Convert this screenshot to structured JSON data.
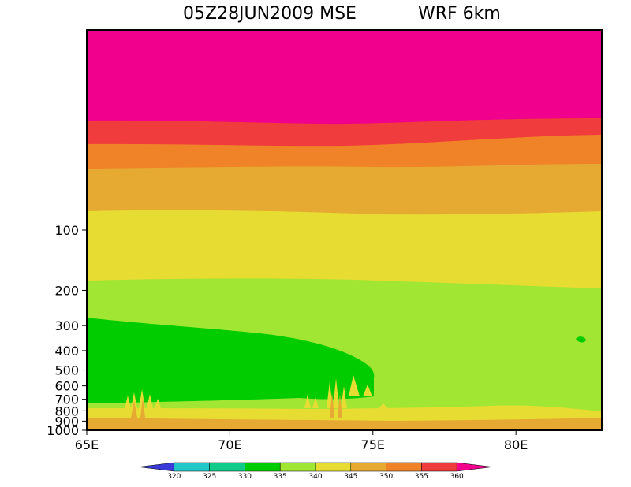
{
  "chart_data": {
    "type": "heatmap",
    "title": "05Z28JUN2009 MSE",
    "subtitle": "WRF 6km",
    "xlabel": "",
    "ylabel": "",
    "x_ticks": [
      "65E",
      "70E",
      "75E",
      "80E"
    ],
    "x_range": [
      65,
      83
    ],
    "y_ticks": [
      "100",
      "200",
      "300",
      "400",
      "500",
      "600",
      "700",
      "800",
      "900",
      "1000"
    ],
    "y_range": [
      1000,
      10
    ],
    "colorbar": {
      "labels": [
        "320",
        "325",
        "330",
        "335",
        "340",
        "345",
        "350",
        "355",
        "360"
      ],
      "colors": [
        "#3a3ad8",
        "#22c8c8",
        "#11cc88",
        "#00cc00",
        "#a0e632",
        "#e6dc32",
        "#e6aa32",
        "#f08228",
        "#f03c3c",
        "#f0008c"
      ]
    },
    "contour_levels": [
      {
        "min": 360,
        "color": "#f0008c"
      },
      {
        "min": 355,
        "max": 360,
        "color": "#f03c3c"
      },
      {
        "min": 350,
        "max": 355,
        "color": "#f08228"
      },
      {
        "min": 345,
        "max": 350,
        "color": "#e6aa32"
      },
      {
        "min": 340,
        "max": 345,
        "color": "#e6dc32"
      },
      {
        "min": 335,
        "max": 340,
        "color": "#a0e632"
      },
      {
        "min": 330,
        "max": 335,
        "color": "#00cc00"
      }
    ]
  }
}
